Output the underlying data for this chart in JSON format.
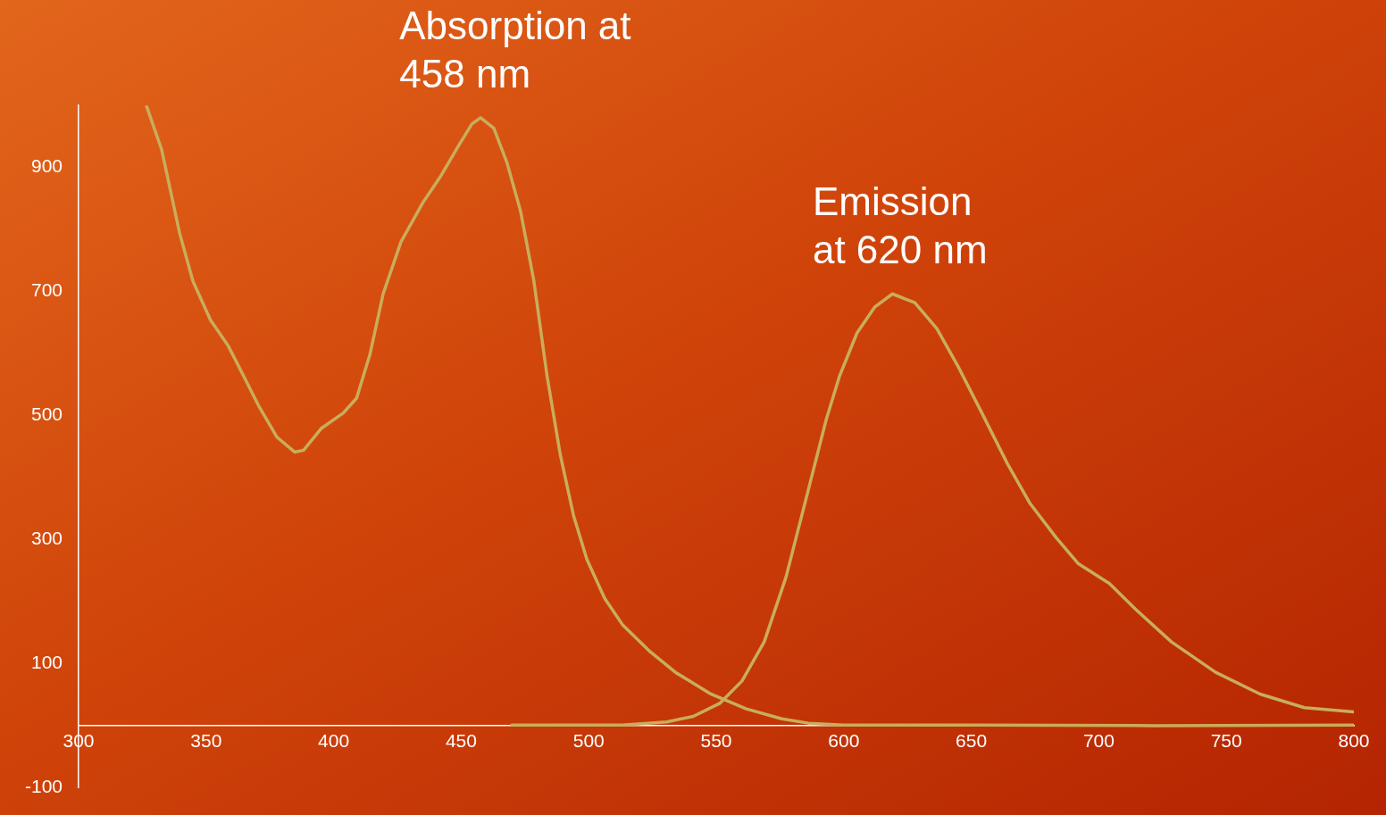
{
  "chart_data": {
    "type": "line",
    "xlim": [
      300,
      800
    ],
    "xticks": [
      300,
      350,
      400,
      450,
      500,
      550,
      600,
      650,
      700,
      750,
      800
    ],
    "ylim": [
      -100,
      1000
    ],
    "yticks": [
      -100,
      100,
      300,
      500,
      700,
      900
    ],
    "grid": false,
    "legend": false,
    "marker": "none",
    "line_style": "solid",
    "annotations": [
      {
        "text": "Absorption at\n458 nm",
        "x": 458,
        "y": 980
      },
      {
        "text": "Emission\nat 620 nm",
        "x": 620,
        "y": 696
      }
    ],
    "series": [
      {
        "color": "#c9ad5a",
        "x": [
          326.7,
          332.6,
          339.6,
          344.8,
          351.7,
          358.7,
          363.9,
          370.8,
          377.8,
          384.7,
          388.2,
          395.1,
          403.8,
          409,
          414.2,
          419.4,
          426.4,
          435.1,
          442,
          449,
          454.2,
          457.6,
          462.8,
          468,
          473.3,
          478.5,
          483.7,
          488.9,
          494.1,
          499.3,
          506.3,
          513.2,
          523.6,
          534,
          547.9,
          561.8,
          575.7,
          586.1,
          600,
          652,
          721.5,
          800
        ],
        "values": [
          998,
          928,
          794,
          717,
          654,
          612,
          570,
          514,
          465,
          441,
          444,
          479,
          504,
          528,
          598,
          696,
          780,
          844,
          886,
          935,
          970,
          980,
          963,
          907,
          829,
          717,
          563,
          436,
          338,
          268,
          205,
          163,
          121,
          86,
          51,
          27,
          11,
          4,
          1,
          1,
          0,
          1
        ]
      },
      {
        "color": "#c9ad5a",
        "x": [
          469.8,
          513.2,
          530.6,
          541,
          551.4,
          560.1,
          568.8,
          577.4,
          586.1,
          593.1,
          598.3,
          605.2,
          612.2,
          619.1,
          627.8,
          636.5,
          645.1,
          653.8,
          664.2,
          672.9,
          683.3,
          692,
          704.2,
          714.6,
          728.5,
          745.8,
          763.2,
          780.6,
          800
        ],
        "values": [
          1,
          1,
          6,
          15,
          36,
          72,
          135,
          240,
          380,
          493,
          563,
          633,
          675,
          696,
          682,
          640,
          577,
          507,
          422,
          359,
          303,
          261,
          229,
          187,
          135,
          86,
          51,
          29,
          22
        ]
      }
    ]
  }
}
